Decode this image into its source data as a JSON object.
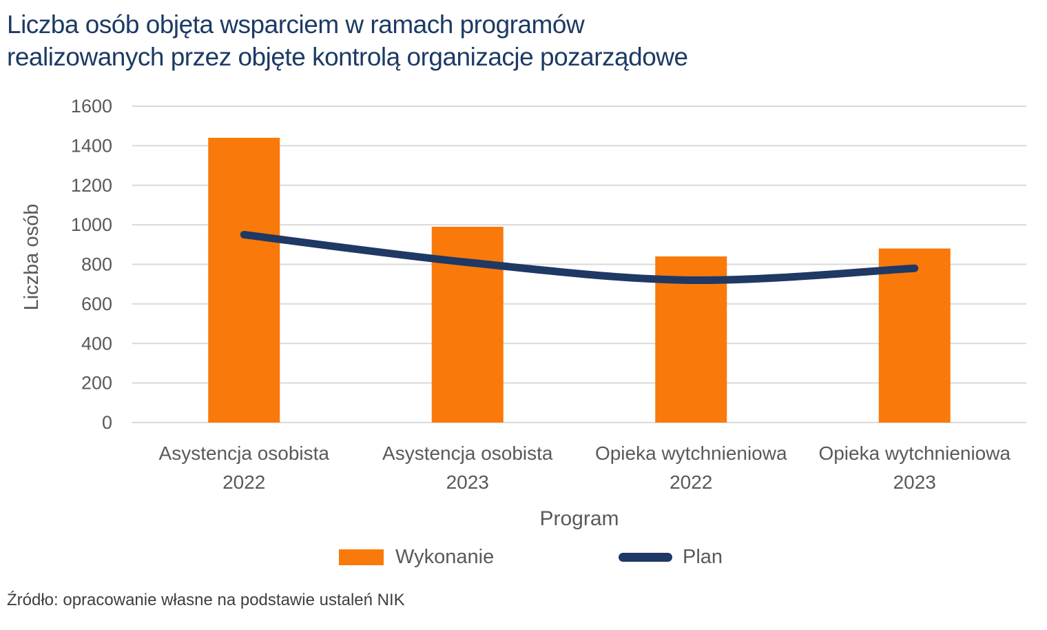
{
  "source": "Źródło: opracowanie własne na podstawie ustaleń NIK",
  "colors": {
    "title": "#1c3a63",
    "axis_text": "#595959",
    "grid": "#d9d9d9",
    "source_text": "#3f3f3f",
    "bar": "#f9790a",
    "line": "#1f3864"
  },
  "chart_data": {
    "type": "bar",
    "title": "Liczba osób objęta wsparciem w ramach programów\nrealizowanych przez objęte kontrolą organizacje pozarządowe",
    "categories": [
      "Asystencja osobista 2022",
      "Asystencja osobista 2023",
      "Opieka wytchnieniowa 2022",
      "Opieka wytchnieniowa 2023"
    ],
    "series": [
      {
        "name": "Wykonanie",
        "type": "bar",
        "color": "#f9790a",
        "values": [
          1440,
          990,
          840,
          880
        ]
      },
      {
        "name": "Plan",
        "type": "line",
        "color": "#1f3864",
        "values": [
          950,
          810,
          720,
          780
        ]
      }
    ],
    "xlabel": "Program",
    "ylabel": "Liczba osób",
    "ylim": [
      0,
      1600
    ],
    "yticks": [
      0,
      200,
      400,
      600,
      800,
      1000,
      1200,
      1400,
      1600
    ],
    "grid": true,
    "grid_orientation": "horizontal",
    "legend_position": "bottom",
    "line_smooth": true
  }
}
